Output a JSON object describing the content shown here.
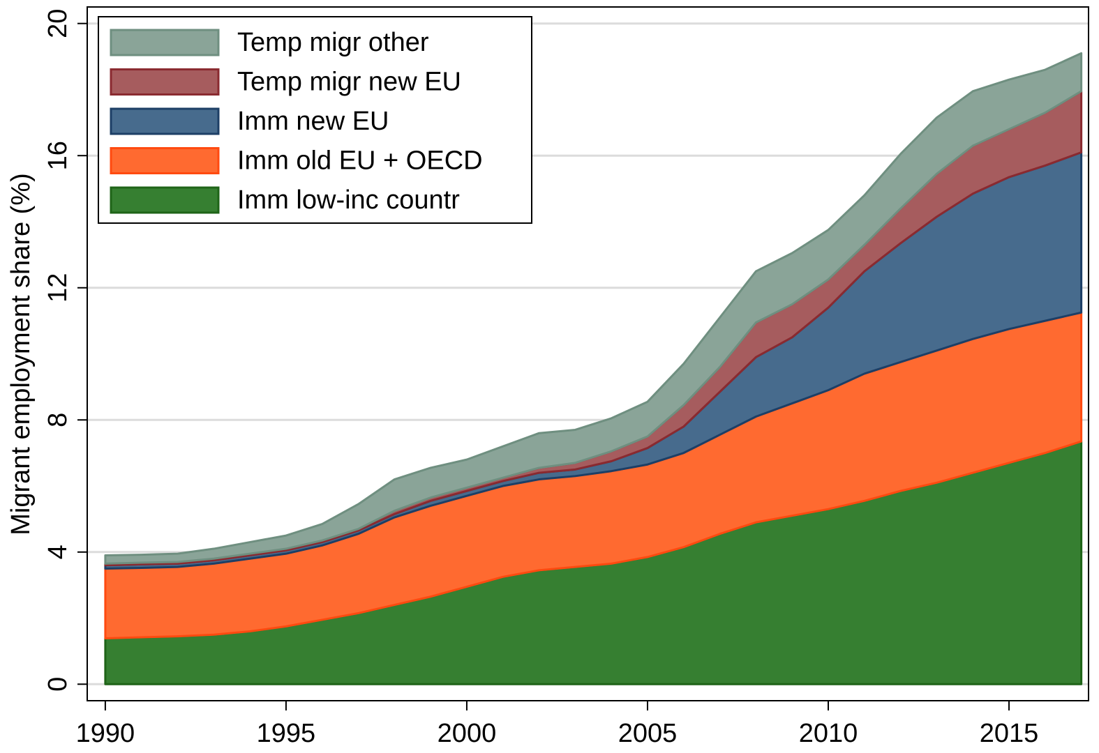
{
  "chart_data": {
    "type": "stacked_area",
    "y_label": "Migrant employment share (%)",
    "x": [
      1990,
      1991,
      1992,
      1993,
      1994,
      1995,
      1996,
      1997,
      1998,
      1999,
      2000,
      2001,
      2002,
      2003,
      2004,
      2005,
      2006,
      2007,
      2008,
      2009,
      2010,
      2011,
      2012,
      2013,
      2014,
      2015,
      2016,
      2017
    ],
    "series": [
      {
        "name": "Imm low-inc countr",
        "color": "#367f31",
        "stroke": "#1f6418",
        "values": [
          1.39,
          1.42,
          1.45,
          1.5,
          1.6,
          1.75,
          1.95,
          2.15,
          2.4,
          2.65,
          2.95,
          3.25,
          3.45,
          3.55,
          3.65,
          3.85,
          4.15,
          4.55,
          4.9,
          5.1,
          5.3,
          5.55,
          5.85,
          6.1,
          6.4,
          6.7,
          7.0,
          7.35
        ]
      },
      {
        "name": "Imm old EU + OECD",
        "color": "#ff6a30",
        "stroke": "#ff4a10",
        "values": [
          2.11,
          2.1,
          2.1,
          2.15,
          2.2,
          2.2,
          2.25,
          2.4,
          2.65,
          2.75,
          2.75,
          2.75,
          2.75,
          2.75,
          2.8,
          2.8,
          2.85,
          3.0,
          3.2,
          3.4,
          3.6,
          3.85,
          3.9,
          4.0,
          4.05,
          4.05,
          4.0,
          3.9
        ]
      },
      {
        "name": "Imm new EU",
        "color": "#476b8d",
        "stroke": "#1d3f66",
        "values": [
          0.1,
          0.11,
          0.1,
          0.1,
          0.1,
          0.1,
          0.1,
          0.1,
          0.1,
          0.15,
          0.15,
          0.15,
          0.2,
          0.2,
          0.3,
          0.5,
          0.8,
          1.3,
          1.8,
          2.0,
          2.5,
          3.1,
          3.6,
          4.05,
          4.4,
          4.6,
          4.7,
          4.85
        ]
      },
      {
        "name": "Temp migr new EU",
        "color": "#a65c5e",
        "stroke": "#8a2a30",
        "values": [
          0.05,
          0.05,
          0.05,
          0.05,
          0.05,
          0.05,
          0.05,
          0.05,
          0.1,
          0.1,
          0.1,
          0.1,
          0.15,
          0.2,
          0.3,
          0.35,
          0.65,
          0.75,
          1.05,
          1.0,
          0.85,
          0.8,
          1.05,
          1.3,
          1.45,
          1.45,
          1.6,
          1.85
        ]
      },
      {
        "name": "Temp migr other",
        "color": "#8aa498",
        "stroke": "#6f8f80",
        "values": [
          0.25,
          0.24,
          0.25,
          0.3,
          0.35,
          0.4,
          0.5,
          0.75,
          0.95,
          0.9,
          0.85,
          0.95,
          1.05,
          1.0,
          1.0,
          1.05,
          1.25,
          1.5,
          1.55,
          1.55,
          1.5,
          1.5,
          1.65,
          1.7,
          1.65,
          1.5,
          1.3,
          1.15
        ]
      }
    ],
    "xlim": [
      1989.5,
      2017.2
    ],
    "xticks": [
      1990,
      1995,
      2000,
      2005,
      2010,
      2015
    ],
    "ylim": [
      -0.5,
      20.5
    ],
    "yticks": [
      0,
      4,
      8,
      12,
      16,
      20
    ],
    "grid": true,
    "legend": "top-left"
  }
}
